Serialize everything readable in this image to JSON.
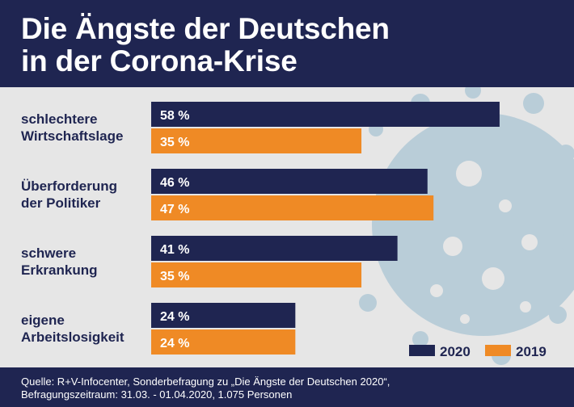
{
  "title": {
    "line1": "Die Ängste der Deutschen",
    "line2": "in der Corona-Krise"
  },
  "source": {
    "line1": "Quelle: R+V-Infocenter, Sonderbefragung zu „Die Ängste der Deutschen 2020“,",
    "line2": "Befragungszeitraum: 31.03. - 01.04.2020, 1.075 Personen"
  },
  "colors": {
    "navy": "#1f2551",
    "orange": "#ef8a25",
    "background": "#e6e6e6",
    "virus": "#b9cdd8"
  },
  "chart_data": {
    "type": "bar",
    "orientation": "horizontal",
    "categories": [
      [
        "schlechtere",
        "Wirtschaftslage"
      ],
      [
        "Überforderung",
        "der Politiker"
      ],
      [
        "schwere",
        "Erkrankung"
      ],
      [
        "eigene",
        "Arbeitslosigkeit"
      ]
    ],
    "series": [
      {
        "name": "2020",
        "color": "#1f2551",
        "values": [
          58,
          46,
          41,
          24
        ],
        "labels": [
          "58 %",
          "46 %",
          "41 %",
          "24 %"
        ]
      },
      {
        "name": "2019",
        "color": "#ef8a25",
        "values": [
          35,
          47,
          35,
          24
        ],
        "labels": [
          "35 %",
          "47 %",
          "35 %",
          "24 %"
        ]
      }
    ],
    "xlim": [
      0,
      100
    ],
    "grid": false,
    "legend": "bottom-right",
    "unit": "%"
  }
}
